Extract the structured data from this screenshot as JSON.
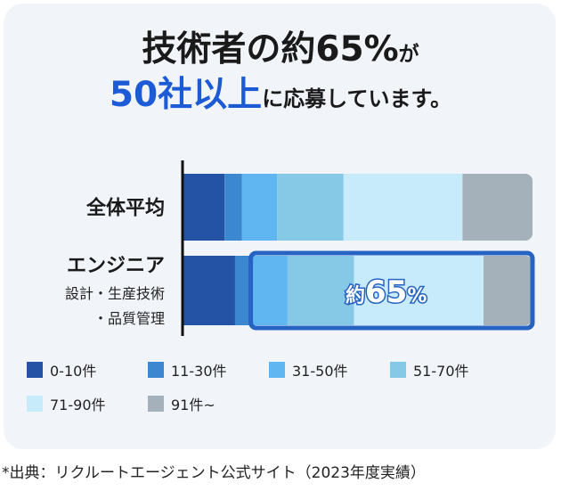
{
  "headline": {
    "line1_main": "技術者の約65%",
    "line1_suffix": "が",
    "line2_main": "50社以上",
    "line2_suffix": "に応募しています。"
  },
  "colors": {
    "0-10件": "#2452a4",
    "11-30件": "#3b87d0",
    "31-50件": "#60b6f1",
    "51-70件": "#85c9e6",
    "71-90件": "#c7ebfa",
    "91件~": "#a4b1bb",
    "highlight_border": "#2663c2"
  },
  "chart_data": {
    "type": "bar",
    "orientation": "horizontal",
    "stacked": true,
    "unit": "percent",
    "categories": [
      "全体平均",
      "エンジニア"
    ],
    "category_sublabels": [
      "",
      "設計・生産技術\n・品質管理"
    ],
    "series": [
      {
        "name": "0-10件",
        "values": [
          12,
          15
        ]
      },
      {
        "name": "11-30件",
        "values": [
          5,
          5
        ]
      },
      {
        "name": "31-50件",
        "values": [
          10,
          10
        ]
      },
      {
        "name": "51-70件",
        "values": [
          19,
          19
        ]
      },
      {
        "name": "71-90件",
        "values": [
          34,
          37
        ]
      },
      {
        "name": "91件~",
        "values": [
          20,
          14
        ]
      }
    ],
    "xlim": [
      0,
      100
    ],
    "annotation": {
      "category": "エンジニア",
      "from_series": 2,
      "label": "約65%"
    }
  },
  "legend": [
    "0-10件",
    "11-30件",
    "31-50件",
    "51-70件",
    "71-90件",
    "91件~"
  ],
  "source": "*出典：リクルートエージェント公式サイト（2023年度実績）"
}
